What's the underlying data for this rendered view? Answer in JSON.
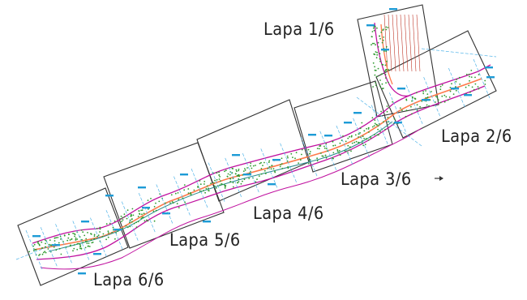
{
  "sheets": [
    {
      "id": "1",
      "label": "Lapa 1/6"
    },
    {
      "id": "2",
      "label": "Lapa 2/6"
    },
    {
      "id": "3",
      "label": "Lapa 3/6"
    },
    {
      "id": "4",
      "label": "Lapa 4/6"
    },
    {
      "id": "5",
      "label": "Lapa 5/6"
    },
    {
      "id": "6",
      "label": "Lapa 6/6"
    }
  ],
  "colors": {
    "sheet_frame": "#333333",
    "road_edge": "#c0119f",
    "centerline": "#ff7a4a",
    "vegetation": "#2e9a2e",
    "survey_marks": "#1d9bd6",
    "hatch": "#c0392b",
    "text": "#222222"
  },
  "icons": {
    "north_arrow": "small-arrow-icon"
  }
}
